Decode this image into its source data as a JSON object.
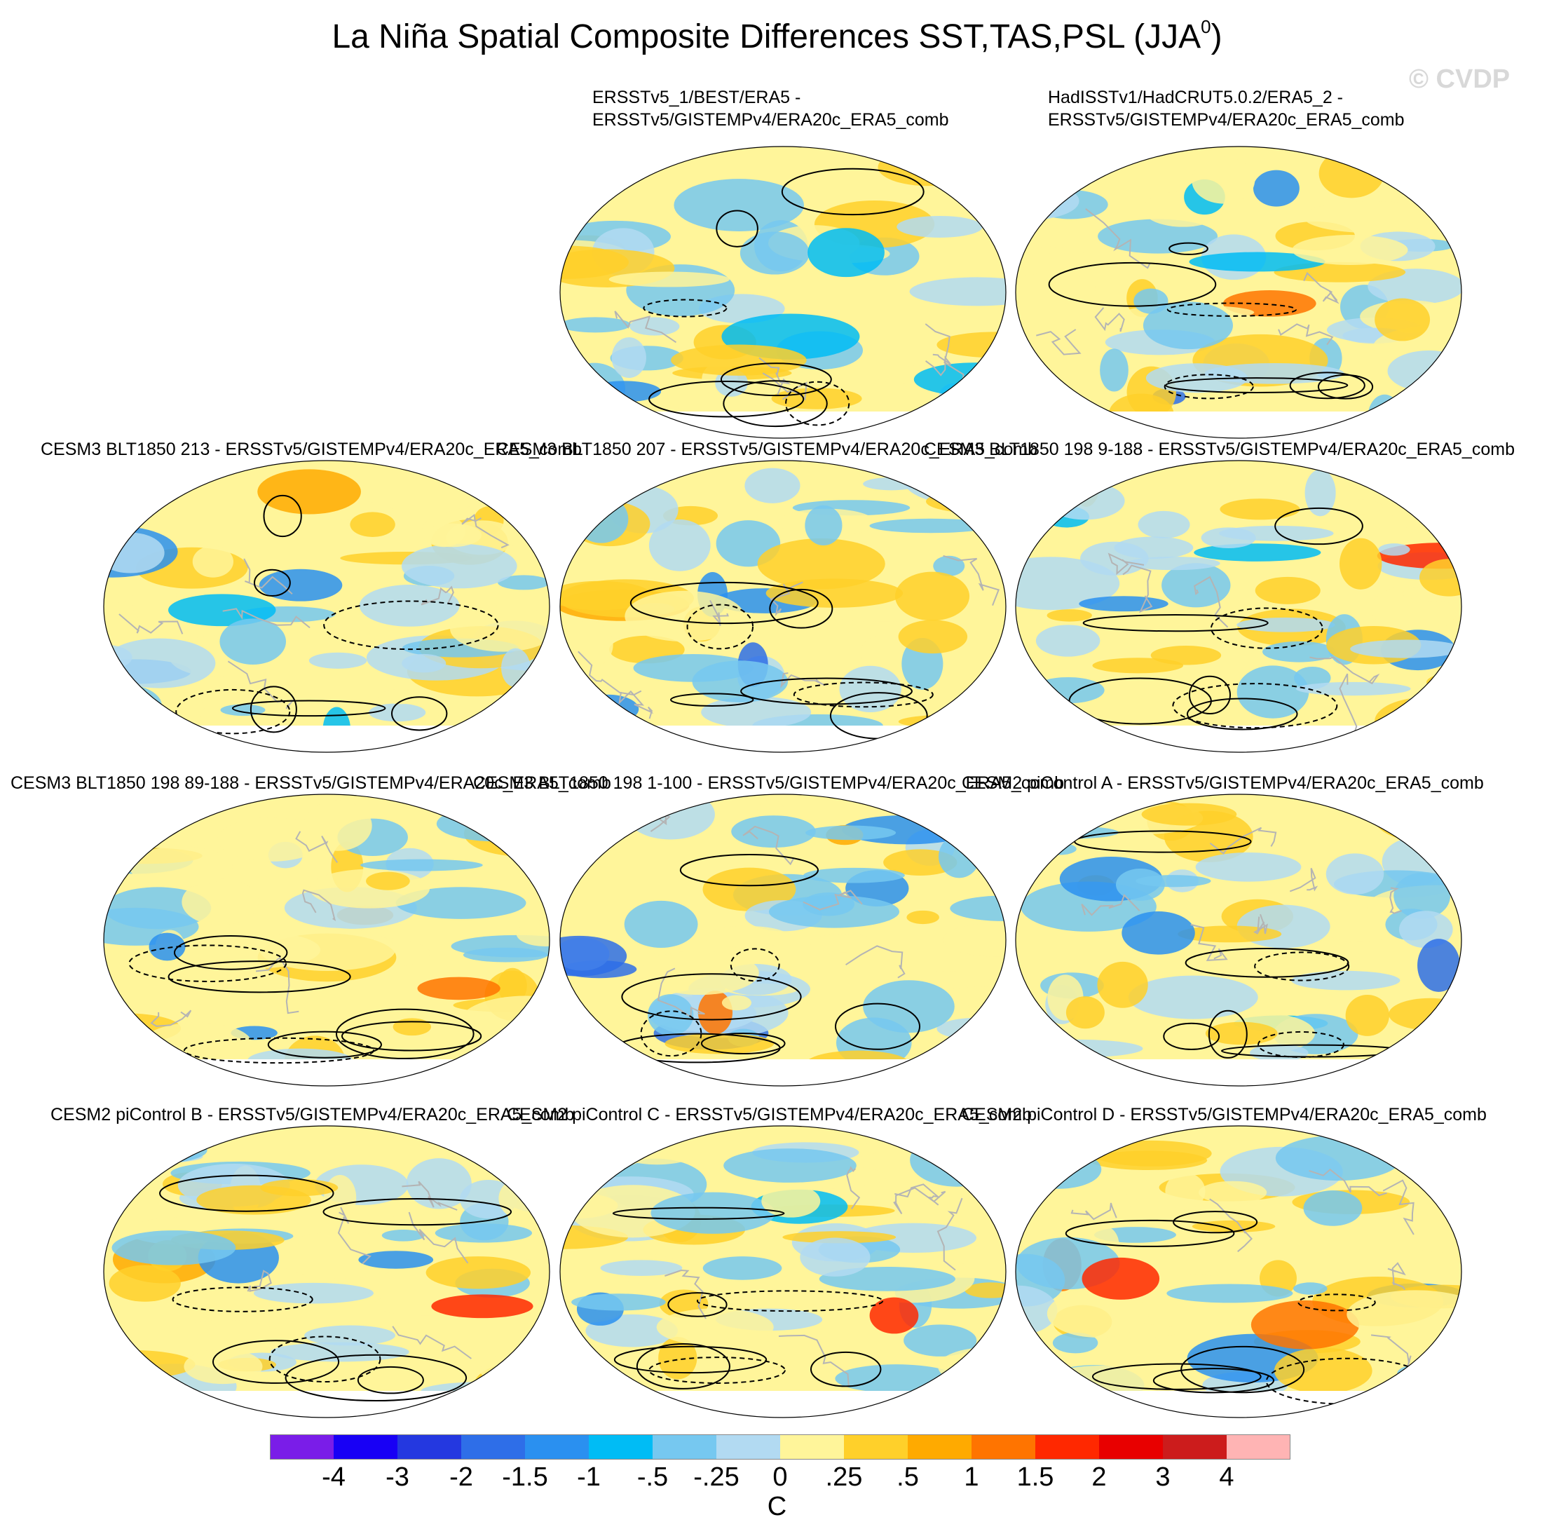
{
  "figure": {
    "title_main": "La Niña Spatial Composite Differences SST,TAS,PSL (JJA",
    "title_sup": "0",
    "title_close": ")",
    "watermark": "© CVDP"
  },
  "panels": [
    {
      "title_line1": "ERSSTv5_1/BEST/ERA5 -",
      "title_line2": "ERSSTv5/GISTEMPv4/ERA20c_ERA5_comb"
    },
    {
      "title_line1": "HadISSTv1/HadCRUT5.0.2/ERA5_2 -",
      "title_line2": "ERSSTv5/GISTEMPv4/ERA20c_ERA5_comb"
    },
    {
      "title_line1": "CESM3 BLT1850 213 - ERSSTv5/GISTEMPv4/ERA20c_ERA5_comb"
    },
    {
      "title_line1": "CESM3 BLT1850 207 - ERSSTv5/GISTEMPv4/ERA20c_ERA5_comb"
    },
    {
      "title_line1": "CESM3 BLT1850 198 9-188 - ERSSTv5/GISTEMPv4/ERA20c_ERA5_comb"
    },
    {
      "title_line1": "CESM3 BLT1850 198 89-188 - ERSSTv5/GISTEMPv4/ERA20c_ERA5_comb"
    },
    {
      "title_line1": "CESM3 BLT1850 198 1-100 - ERSSTv5/GISTEMPv4/ERA20c_ERA5_comb"
    },
    {
      "title_line1": "CESM2 piControl A - ERSSTv5/GISTEMPv4/ERA20c_ERA5_comb"
    },
    {
      "title_line1": "CESM2 piControl B - ERSSTv5/GISTEMPv4/ERA20c_ERA5_comb"
    },
    {
      "title_line1": "CESM2 piControl C - ERSSTv5/GISTEMPv4/ERA20c_ERA5_comb"
    },
    {
      "title_line1": "CESM2 piControl D - ERSSTv5/GISTEMPv4/ERA20c_ERA5_comb"
    }
  ],
  "colorbar": {
    "levels": [
      "-4",
      "-3",
      "-2",
      "-1.5",
      "-1",
      "-.5",
      "-.25",
      "0",
      ".25",
      ".5",
      "1",
      "1.5",
      "2",
      "3",
      "4"
    ],
    "colors": [
      "#7a1de8",
      "#1800f5",
      "#2438e0",
      "#2e6ee8",
      "#2a90f0",
      "#00bcf5",
      "#76c8f0",
      "#b2daf2",
      "#fff59a",
      "#ffd02a",
      "#ffaa00",
      "#ff7400",
      "#ff2800",
      "#e80000",
      "#cc1c1c",
      "#ffb4b4"
    ],
    "unit": "C"
  },
  "colors": {
    "land_outline": "#b4b4b4",
    "contour": "#000000",
    "map_border": "#000000"
  }
}
